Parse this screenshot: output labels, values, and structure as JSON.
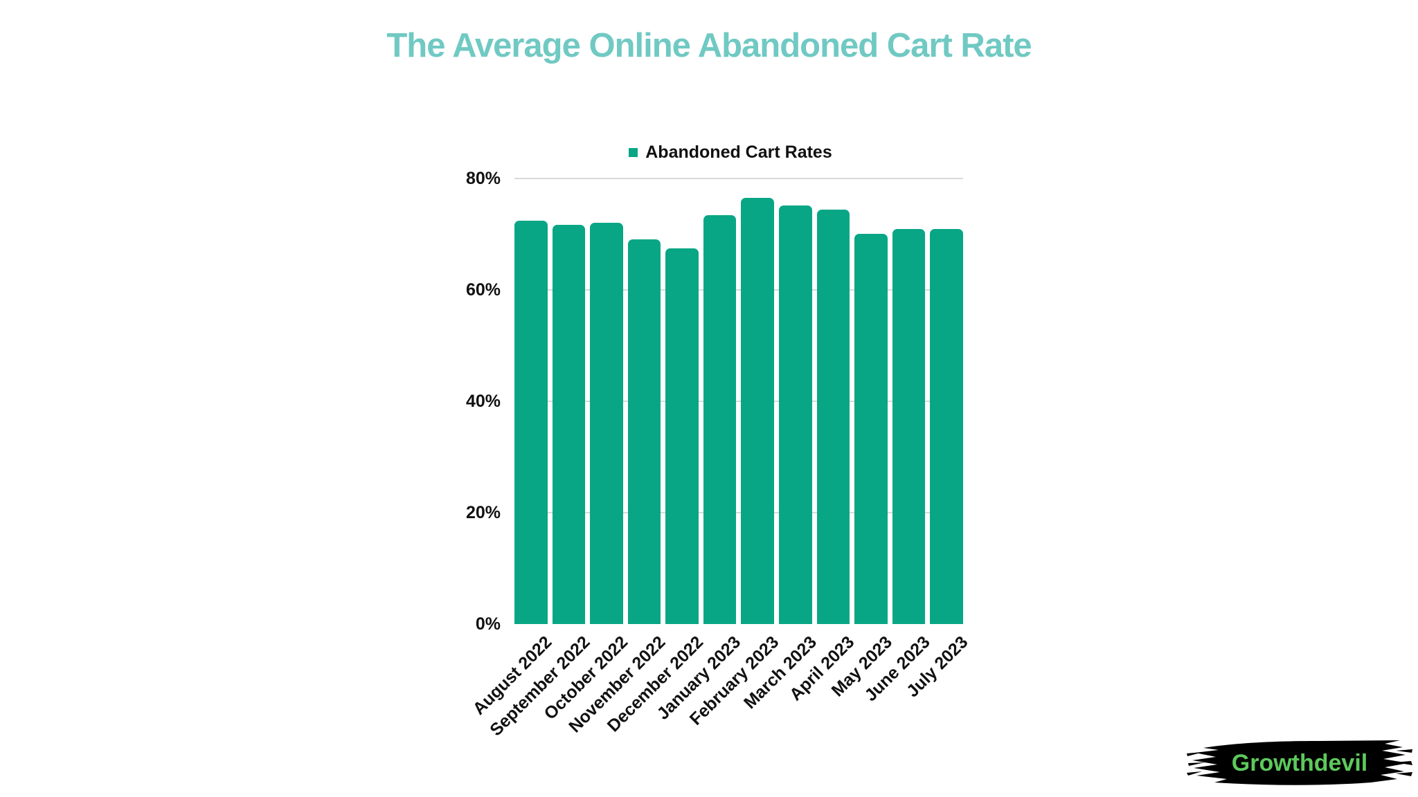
{
  "title": {
    "text": "The Average Online Abandoned Cart Rate",
    "color": "#70c9c3"
  },
  "legend": {
    "label": "Abandoned Cart Rates",
    "marker_color": "#08a685"
  },
  "chart_data": {
    "type": "bar",
    "title": "The Average Online Abandoned Cart Rate",
    "series_name": "Abandoned Cart Rates",
    "categories": [
      "August 2022",
      "September 2022",
      "October 2022",
      "November 2022",
      "December 2022",
      "January 2023",
      "February 2023",
      "March 2023",
      "April 2023",
      "May 2023",
      "June 2023",
      "July 2023"
    ],
    "values": [
      72.4,
      71.7,
      72.1,
      69.1,
      67.4,
      73.4,
      76.5,
      75.2,
      74.4,
      70.1,
      70.9,
      70.9
    ],
    "unit": "%",
    "xlabel": "",
    "ylabel": "",
    "ylim": [
      0,
      80
    ],
    "ytick_step": 20,
    "yticks_top_to_bottom": [
      "80%",
      "60%",
      "40%",
      "20%",
      "0%"
    ],
    "grid": true,
    "legend_position": "top-center",
    "bar_color": "#08a685",
    "gridline_color": "#d9d9d9",
    "label_color": "#111111"
  },
  "watermark": {
    "text": "Growthdevil",
    "text_color": "#5dc95c",
    "brush_color": "#000000"
  }
}
